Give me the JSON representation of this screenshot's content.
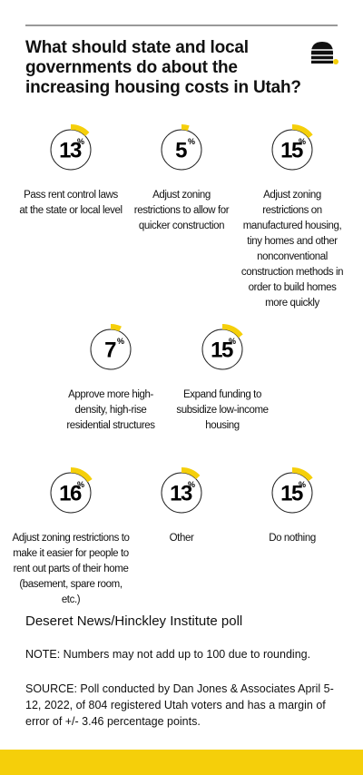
{
  "chart_data": {
    "type": "radial",
    "title": "What should state and local governments do about the increasing housing costs in Utah?",
    "unit": "%",
    "color": "#f5cf0a",
    "categories": [
      "Pass rent control laws at the state or local level",
      "Adjust zoning restrictions to allow for quicker construction",
      "Adjust zoning restrictions on manufactured housing, tiny homes and other nonconventional construction methods in order to build homes more quickly",
      "Approve more high-density, high-rise residential structures",
      "Expand funding to subsidize low-income housing",
      "Adjust zoning restrictions to make it easier for people to rent out parts of their home (basement, spare room, etc.)",
      "Other",
      "Do nothing"
    ],
    "values": [
      13,
      5,
      15,
      7,
      15,
      16,
      13,
      15
    ],
    "source": "Deseret News/Hinckley Institute poll",
    "note": "NOTE: Numbers may not add up to 100 due to rounding.",
    "source_detail": "SOURCE: Poll conducted by Dan Jones & Associates April 5-12, 2022, of 804 registered Utah voters and has a margin of error of +/- 3.46 percentage points."
  }
}
